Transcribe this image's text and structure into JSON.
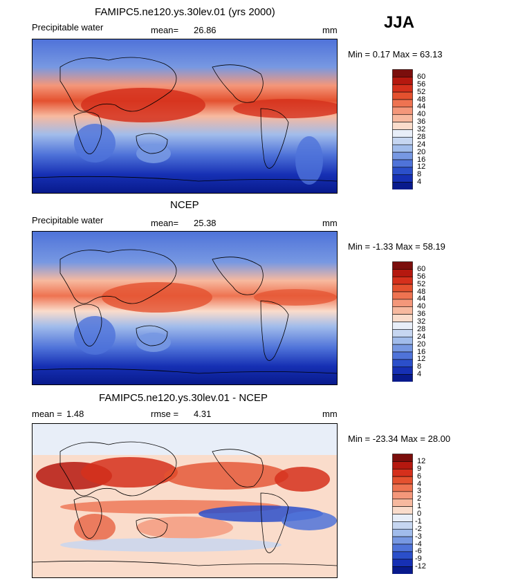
{
  "season": "JJA",
  "panels": [
    {
      "title": "FAMIPC5.ne120.ys.30lev.01 (yrs 2000)",
      "left_label": "Precipitable water",
      "stat_label": "mean=",
      "stat_value": "26.86",
      "units": "mm",
      "minmax": "Min =   0.17 Max =  63.13",
      "levels": [
        "60",
        "56",
        "52",
        "48",
        "44",
        "40",
        "36",
        "32",
        "28",
        "24",
        "20",
        "16",
        "12",
        "8",
        "4"
      ],
      "colors": [
        "#7b0e0c",
        "#b5180f",
        "#d5301c",
        "#e4512f",
        "#ee7351",
        "#f4977a",
        "#f7b99f",
        "#fadccb",
        "#e8eef8",
        "#c6d6f1",
        "#a1bceb",
        "#7798e2",
        "#4f73d9",
        "#2b4fca",
        "#1630b4",
        "#081a8c"
      ]
    },
    {
      "title": "NCEP",
      "left_label": "Precipitable water",
      "stat_label": "mean=",
      "stat_value": "25.38",
      "units": "mm",
      "minmax": "Min =  -1.33 Max =  58.19",
      "levels": [
        "60",
        "56",
        "52",
        "48",
        "44",
        "40",
        "36",
        "32",
        "28",
        "24",
        "20",
        "16",
        "12",
        "8",
        "4"
      ],
      "colors": [
        "#7b0e0c",
        "#b5180f",
        "#d5301c",
        "#e4512f",
        "#ee7351",
        "#f4977a",
        "#f7b99f",
        "#fadccb",
        "#e8eef8",
        "#c6d6f1",
        "#a1bceb",
        "#7798e2",
        "#4f73d9",
        "#2b4fca",
        "#1630b4",
        "#081a8c"
      ]
    },
    {
      "title": "FAMIPC5.ne120.ys.30lev.01 - NCEP",
      "left_label": "mean =",
      "left_value": "1.48",
      "stat_label": "rmse =",
      "stat_value": "4.31",
      "units": "mm",
      "minmax": "Min = -23.34 Max =  28.00",
      "levels": [
        "12",
        "9",
        "6",
        "4",
        "3",
        "2",
        "1",
        "0",
        "-1",
        "-2",
        "-3",
        "-4",
        "-6",
        "-9",
        "-12"
      ],
      "colors": [
        "#7b0e0c",
        "#b5180f",
        "#d5301c",
        "#e4512f",
        "#ee7351",
        "#f4977a",
        "#f7b99f",
        "#fadccb",
        "#e8eef8",
        "#c6d6f1",
        "#a1bceb",
        "#7798e2",
        "#4f73d9",
        "#2b4fca",
        "#1630b4",
        "#081a8c"
      ]
    }
  ]
}
